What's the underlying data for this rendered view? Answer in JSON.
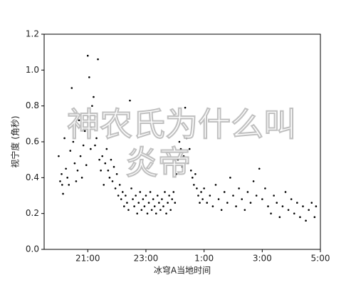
{
  "chart_data": {
    "type": "scatter",
    "x_label": "冰穹A当地时间",
    "y_label": "视宁度 (角秒)",
    "xlim": [
      19.5,
      29
    ],
    "ylim": [
      0,
      1.2
    ],
    "xticks": [
      {
        "value": 21,
        "label": "21:00"
      },
      {
        "value": 23,
        "label": "23:00"
      },
      {
        "value": 25,
        "label": "1:00"
      },
      {
        "value": 27,
        "label": "3:00"
      },
      {
        "value": 29,
        "label": "5:00"
      }
    ],
    "yticks": [
      {
        "value": 0,
        "label": "0.0"
      },
      0.2,
      0.4,
      0.6,
      0.8,
      {
        "value": 1,
        "label": "1.0"
      },
      1.2
    ],
    "color": "#000000",
    "x": [
      20.0,
      20.05,
      20.1,
      20.12,
      20.15,
      20.2,
      20.25,
      20.3,
      20.35,
      20.4,
      20.45,
      20.5,
      20.55,
      20.6,
      20.65,
      20.7,
      20.75,
      20.8,
      20.85,
      20.9,
      20.95,
      21.0,
      21.02,
      21.05,
      21.1,
      21.12,
      21.15,
      21.2,
      21.25,
      21.28,
      21.3,
      21.35,
      21.4,
      21.45,
      21.5,
      21.55,
      21.6,
      21.65,
      21.7,
      21.75,
      21.8,
      21.85,
      21.9,
      21.95,
      22.0,
      22.05,
      22.1,
      22.15,
      22.2,
      22.25,
      22.3,
      22.35,
      22.4,
      22.45,
      22.5,
      22.55,
      22.6,
      22.65,
      22.7,
      22.75,
      22.8,
      22.85,
      22.9,
      22.95,
      23.0,
      23.05,
      23.1,
      23.15,
      23.2,
      23.25,
      23.3,
      23.35,
      23.4,
      23.45,
      23.5,
      23.55,
      23.6,
      23.65,
      23.7,
      23.75,
      23.8,
      23.85,
      23.9,
      23.95,
      24.0,
      24.05,
      24.1,
      24.15,
      24.2,
      24.25,
      24.3,
      24.35,
      24.4,
      24.45,
      24.5,
      24.55,
      24.6,
      24.65,
      24.7,
      24.75,
      24.8,
      24.85,
      24.9,
      24.95,
      25.0,
      25.1,
      25.2,
      25.3,
      25.4,
      25.5,
      25.6,
      25.7,
      25.8,
      25.9,
      26.0,
      26.1,
      26.2,
      26.3,
      26.4,
      26.5,
      26.6,
      26.7,
      26.8,
      26.9,
      27.0,
      27.1,
      27.2,
      27.3,
      27.4,
      27.5,
      27.6,
      27.7,
      27.8,
      27.9,
      28.0,
      28.1,
      28.2,
      28.3,
      28.4,
      28.5,
      28.6,
      28.7,
      28.8,
      28.85
    ],
    "values": [
      0.52,
      0.38,
      0.42,
      0.36,
      0.31,
      0.62,
      0.45,
      0.4,
      0.36,
      0.55,
      0.9,
      0.6,
      0.48,
      0.38,
      0.44,
      0.72,
      0.52,
      0.4,
      0.58,
      0.66,
      0.47,
      1.08,
      0.74,
      0.96,
      0.56,
      0.68,
      0.8,
      0.85,
      0.58,
      0.74,
      0.62,
      1.06,
      0.5,
      0.44,
      0.52,
      0.36,
      0.48,
      0.56,
      0.44,
      0.4,
      0.5,
      0.38,
      0.46,
      0.34,
      0.42,
      0.3,
      0.36,
      0.28,
      0.32,
      0.24,
      0.3,
      0.26,
      0.22,
      0.83,
      0.34,
      0.28,
      0.24,
      0.3,
      0.2,
      0.26,
      0.32,
      0.22,
      0.28,
      0.24,
      0.3,
      0.2,
      0.26,
      0.32,
      0.22,
      0.28,
      0.24,
      0.2,
      0.3,
      0.26,
      0.22,
      0.28,
      0.24,
      0.32,
      0.2,
      0.26,
      0.3,
      0.22,
      0.28,
      0.32,
      0.26,
      0.42,
      0.5,
      0.6,
      0.56,
      0.46,
      0.52,
      0.79,
      0.62,
      0.48,
      0.56,
      0.44,
      0.4,
      0.36,
      0.42,
      0.34,
      0.3,
      0.26,
      0.32,
      0.28,
      0.34,
      0.26,
      0.3,
      0.24,
      0.36,
      0.28,
      0.22,
      0.32,
      0.26,
      0.4,
      0.3,
      0.24,
      0.34,
      0.28,
      0.22,
      0.32,
      0.26,
      0.38,
      0.3,
      0.45,
      0.28,
      0.34,
      0.24,
      0.2,
      0.3,
      0.26,
      0.18,
      0.24,
      0.32,
      0.22,
      0.28,
      0.2,
      0.26,
      0.18,
      0.24,
      0.16,
      0.22,
      0.26,
      0.18,
      0.24
    ]
  },
  "watermark_lines": [
    "神农氏为什么叫",
    "炎帝"
  ]
}
